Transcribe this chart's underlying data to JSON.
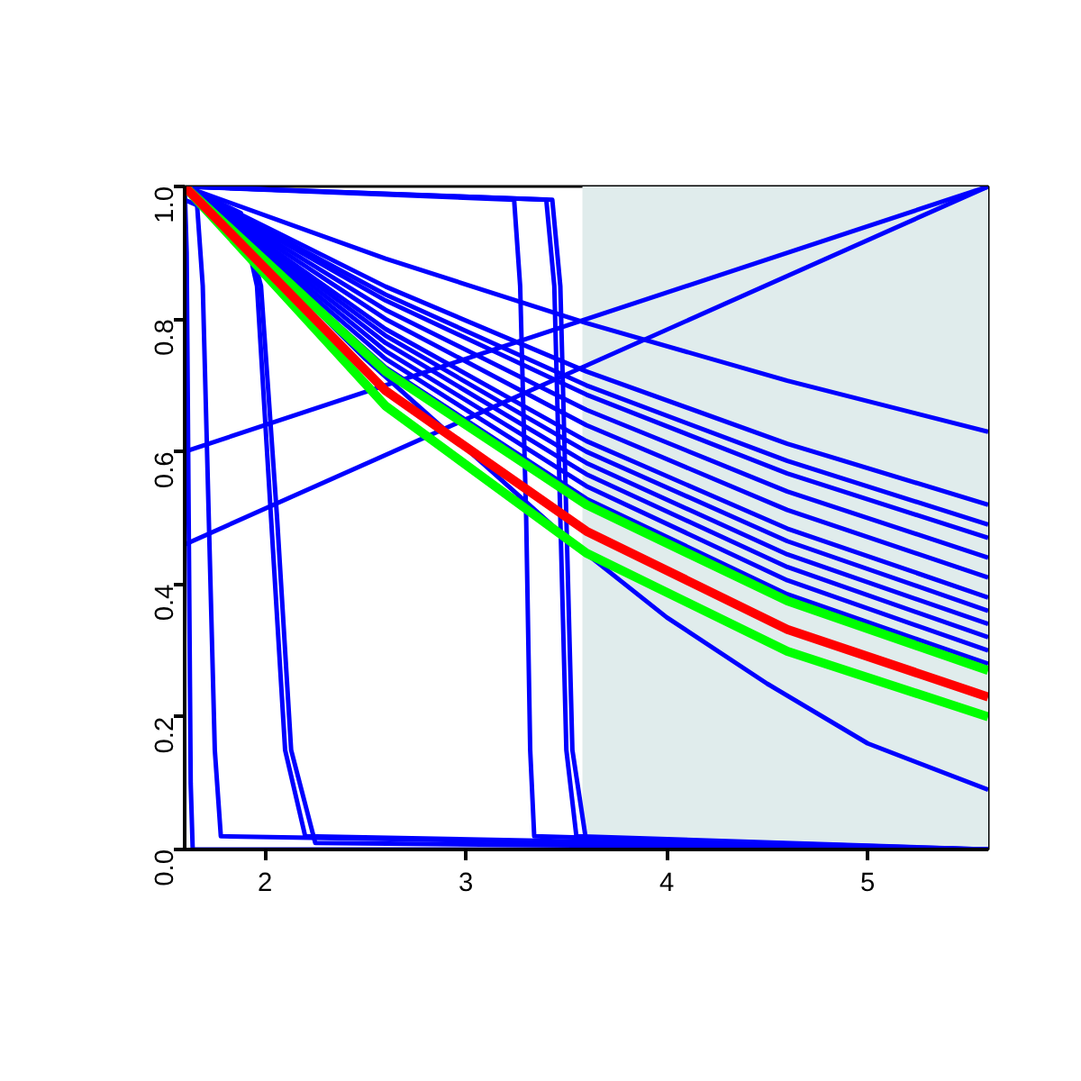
{
  "chart_data": {
    "type": "line",
    "xlim": [
      1.6,
      5.6
    ],
    "ylim": [
      0,
      1
    ],
    "xticks": [
      2,
      3,
      4,
      5
    ],
    "yticks": [
      {
        "value": 0,
        "label": "0.0"
      },
      {
        "value": 0.2,
        "label": "0.2"
      },
      {
        "value": 0.4,
        "label": "0.4"
      },
      {
        "value": 0.6,
        "label": "0.6"
      },
      {
        "value": 0.8,
        "label": "0.8"
      },
      {
        "value": 1,
        "label": "1.0"
      }
    ],
    "grid": false,
    "marker": "none",
    "line_style": "solid",
    "x": [
      1.6,
      2.6,
      3.6,
      4.6,
      5.6
    ],
    "bands": [
      {
        "axis": "x",
        "from": 3.58,
        "to": 5.6,
        "color": "#e0ecec"
      }
    ],
    "series": [
      {
        "color": "#0000ff",
        "values": [
          1,
          0.891,
          0.794,
          0.707,
          0.63
        ]
      },
      {
        "color": "#0000ff",
        "values": [
          1,
          0.849,
          0.721,
          0.612,
          0.52
        ]
      },
      {
        "color": "#0000ff",
        "values": [
          1,
          0.837,
          0.7,
          0.586,
          0.49
        ]
      },
      {
        "color": "#0000ff",
        "values": [
          1,
          0.828,
          0.686,
          0.567,
          0.47
        ]
      },
      {
        "color": "#0000ff",
        "values": [
          1,
          0.814,
          0.663,
          0.54,
          0.44
        ]
      },
      {
        "color": "#0000ff",
        "values": [
          1,
          0.8,
          0.64,
          0.512,
          0.41
        ]
      },
      {
        "color": "#0000ff",
        "values": [
          1,
          0.785,
          0.616,
          0.484,
          0.38
        ]
      },
      {
        "color": "#0000ff",
        "values": [
          1,
          0.775,
          0.6,
          0.465,
          0.36
        ]
      },
      {
        "color": "#0000ff",
        "values": [
          1,
          0.764,
          0.583,
          0.445,
          0.34
        ]
      },
      {
        "color": "#0000ff",
        "values": [
          1,
          0.752,
          0.566,
          0.426,
          0.32
        ]
      },
      {
        "color": "#0000ff",
        "values": [
          1,
          0.74,
          0.548,
          0.406,
          0.3
        ]
      },
      {
        "color": "#0000ff",
        "values": [
          1,
          0.727,
          0.529,
          0.385,
          0.28
        ]
      },
      {
        "color": "#0000ff",
        "x": [
          1.6,
          2,
          2.5,
          3.5,
          4,
          4.5,
          5,
          5.6
        ],
        "values": [
          1,
          0.89,
          0.74,
          0.47,
          0.35,
          0.25,
          0.16,
          0.09
        ]
      },
      {
        "color": "#0000ff",
        "x": [
          1.6,
          5.6
        ],
        "values": [
          0.6,
          1
        ]
      },
      {
        "color": "#0000ff",
        "x": [
          1.6,
          5.6
        ],
        "values": [
          0.46,
          1
        ]
      },
      {
        "color": "#0000ff",
        "x": [
          1.6,
          1.61,
          1.62,
          1.63,
          1.64,
          5.6
        ],
        "values": [
          1,
          0.9,
          0.5,
          0.1,
          0,
          0
        ]
      },
      {
        "color": "#0000ff",
        "x": [
          1.6,
          1.66,
          1.69,
          1.72,
          1.75,
          1.78,
          5.6
        ],
        "values": [
          1,
          0.98,
          0.85,
          0.5,
          0.15,
          0.02,
          0
        ]
      },
      {
        "color": "#0000ff",
        "x": [
          1.6,
          1.88,
          1.96,
          2.03,
          2.1,
          2.2,
          5.6
        ],
        "values": [
          1,
          0.96,
          0.85,
          0.5,
          0.15,
          0.02,
          0
        ]
      },
      {
        "color": "#0000ff",
        "x": [
          1.6,
          1.9,
          1.98,
          2.06,
          2.13,
          2.25,
          5.6
        ],
        "values": [
          0.98,
          0.94,
          0.85,
          0.5,
          0.15,
          0.01,
          0
        ]
      },
      {
        "color": "#0000ff",
        "x": [
          1.6,
          3.24,
          3.27,
          3.3,
          3.32,
          3.34,
          5.6
        ],
        "values": [
          1,
          0.98,
          0.85,
          0.5,
          0.15,
          0.02,
          0
        ]
      },
      {
        "color": "#0000ff",
        "x": [
          1.6,
          3.4,
          3.44,
          3.47,
          3.5,
          3.55,
          5.6
        ],
        "values": [
          1,
          0.98,
          0.85,
          0.5,
          0.15,
          0.02,
          0
        ]
      },
      {
        "color": "#0000ff",
        "x": [
          1.6,
          3.43,
          3.47,
          3.5,
          3.53,
          3.6,
          5.6
        ],
        "values": [
          1,
          0.98,
          0.85,
          0.5,
          0.15,
          0.01,
          0
        ]
      },
      {
        "color": "#00ff00",
        "values": [
          1,
          0.721,
          0.52,
          0.375,
          0.27
        ]
      },
      {
        "color": "#00ff00",
        "values": [
          1,
          0.669,
          0.447,
          0.299,
          0.2
        ]
      },
      {
        "color": "#ff0000",
        "values": [
          1,
          0.692,
          0.48,
          0.332,
          0.23
        ]
      }
    ]
  }
}
